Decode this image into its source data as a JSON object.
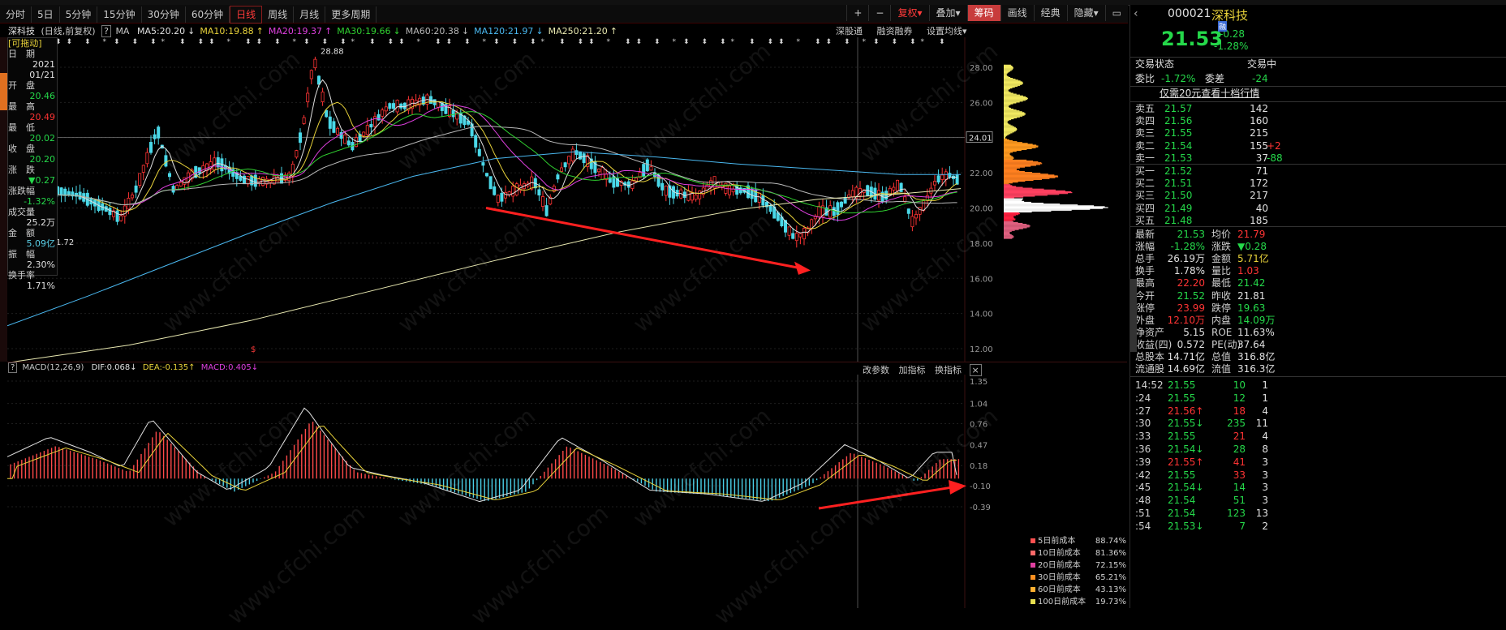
{
  "tabs": [
    "分时",
    "5日",
    "5分钟",
    "15分钟",
    "30分钟",
    "60分钟",
    "日线",
    "周线",
    "月线",
    "更多周期"
  ],
  "active_tab": "日线",
  "toolbar_right": {
    "plus": "+",
    "minus": "−",
    "fq": "复权",
    "overlay": "叠加",
    "chip": "筹码",
    "draw": "画线",
    "classic": "经典",
    "hide": "隐藏"
  },
  "stock_title": {
    "name": "深科技",
    "desc": "(日线,前复权)",
    "ma_label": "MA"
  },
  "ma_items": [
    {
      "label": "MA5:20.20",
      "arrow": "↓",
      "color": "#e0e0e0"
    },
    {
      "label": "MA10:19.88",
      "arrow": "↑",
      "color": "#e8d23a"
    },
    {
      "label": "MA20:19.37",
      "arrow": "↑",
      "color": "#e040e0"
    },
    {
      "label": "MA30:19.66",
      "arrow": "↓",
      "color": "#30d030"
    },
    {
      "label": "MA60:20.38",
      "arrow": "↓",
      "color": "#b8b8b8"
    },
    {
      "label": "MA120:21.97",
      "arrow": "↓",
      "color": "#4ab8f0"
    },
    {
      "label": "MA250:21.20",
      "arrow": "↑",
      "color": "#e8e8b0"
    }
  ],
  "chart_links": {
    "sgt": "深股通",
    "rzrq": "融资融券",
    "set_ma": "设置均线"
  },
  "left_panel": {
    "header": "[可拖动]",
    "date_label": "日　期",
    "date_val": "2021",
    "date_val2": "01/21",
    "open_label": "开　盘",
    "open_val": "20.46",
    "high_label": "最　高",
    "high_val": "20.49",
    "low_label": "最　低",
    "low_val": "20.02",
    "close_label": "收　盘",
    "close_val": "20.20",
    "change_label": "涨　跌",
    "change_val": "▼0.27",
    "pct_label": "涨跌幅",
    "pct_val": "-1.32%",
    "vol_label": "成交量",
    "vol_val": "25.2万",
    "amt_label": "金　额",
    "amt_val": "5.09亿",
    "amp_label": "振　幅",
    "amp_val": "2.30%",
    "turn_label": "换手率",
    "turn_val": "1.71%"
  },
  "price_axis": [
    "28.00",
    "26.00",
    "24.00",
    "22.00",
    "20.00",
    "18.00",
    "16.00",
    "14.00",
    "12.00"
  ],
  "crosshair_price": "24.01",
  "high_annot": "28.88",
  "low_annot": "1.72",
  "macd_header": {
    "title": "MACD(12,26,9)",
    "dif": "DIF:0.068",
    "dea": "DEA:-0.135",
    "macd": "MACD:0.405"
  },
  "macd_links": {
    "params": "改参数",
    "add": "加指标",
    "switch": "换指标",
    "close": "×"
  },
  "macd_axis": [
    "1.35",
    "1.04",
    "0.76",
    "0.47",
    "0.18",
    "-0.10",
    "-0.39"
  ],
  "cost_legend": [
    {
      "label": "5日前成本",
      "val": "88.74%",
      "color": "#ff5050"
    },
    {
      "label": "10日前成本",
      "val": "81.36%",
      "color": "#ff6a6a"
    },
    {
      "label": "20日前成本",
      "val": "72.15%",
      "color": "#e040a0"
    },
    {
      "label": "30日前成本",
      "val": "65.21%",
      "color": "#ff9020"
    },
    {
      "label": "60日前成本",
      "val": "43.13%",
      "color": "#ffb030"
    },
    {
      "label": "100日前成本",
      "val": "19.73%",
      "color": "#e8e050"
    }
  ],
  "quote": {
    "code": "000021",
    "name": "深科技",
    "price": "21.53",
    "chg": "-0.28",
    "pct": "-1.28%",
    "tags": [
      "融",
      "通"
    ],
    "status_label": "交易状态",
    "status_val": "交易中",
    "wb_label": "委比",
    "wb_val": "-1.72%",
    "wc_label": "委差",
    "wc_val": "-24",
    "promo": "仅需20元查看十档行情"
  },
  "asks": [
    {
      "label": "卖五",
      "price": "21.57",
      "vol": "142"
    },
    {
      "label": "卖四",
      "price": "21.56",
      "vol": "160"
    },
    {
      "label": "卖三",
      "price": "21.55",
      "vol": "215"
    },
    {
      "label": "卖二",
      "price": "21.54",
      "vol": "155",
      "chg": "+2"
    },
    {
      "label": "卖一",
      "price": "21.53",
      "vol": "37",
      "chg": "-88"
    }
  ],
  "bids": [
    {
      "label": "买一",
      "price": "21.52",
      "vol": "71"
    },
    {
      "label": "买二",
      "price": "21.51",
      "vol": "172"
    },
    {
      "label": "买三",
      "price": "21.50",
      "vol": "217"
    },
    {
      "label": "买四",
      "price": "21.49",
      "vol": "40"
    },
    {
      "label": "买五",
      "price": "21.48",
      "vol": "185"
    }
  ],
  "stats": [
    {
      "l1": "最新",
      "v1": "21.53",
      "c1": "grn",
      "l2": "均价",
      "v2": "21.79",
      "c2": "red"
    },
    {
      "l1": "涨幅",
      "v1": "-1.28%",
      "c1": "grn",
      "l2": "涨跌",
      "v2": "▼0.28",
      "c2": "grn"
    },
    {
      "l1": "总手",
      "v1": "26.19万",
      "c1": "wht",
      "l2": "金额",
      "v2": "5.71亿",
      "c2": "yel"
    },
    {
      "l1": "换手",
      "v1": "1.78%",
      "c1": "wht",
      "l2": "量比",
      "v2": "1.03",
      "c2": "red"
    },
    {
      "l1": "最高",
      "v1": "22.20",
      "c1": "red",
      "l2": "最低",
      "v2": "21.42",
      "c2": "grn"
    },
    {
      "l1": "今开",
      "v1": "21.52",
      "c1": "grn",
      "l2": "昨收",
      "v2": "21.81",
      "c2": "wht"
    },
    {
      "l1": "涨停",
      "v1": "23.99",
      "c1": "red",
      "l2": "跌停",
      "v2": "19.63",
      "c2": "grn"
    },
    {
      "l1": "外盘",
      "v1": "12.10万",
      "c1": "red",
      "l2": "内盘",
      "v2": "14.09万",
      "c2": "grn"
    },
    {
      "l1": "净资产",
      "v1": "5.15",
      "c1": "wht",
      "l2": "ROE",
      "v2": "11.63%",
      "c2": "wht"
    },
    {
      "l1": "收益(四)",
      "v1": "0.572",
      "c1": "wht",
      "l2": "PE(动)",
      "v2": "37.64",
      "c2": "wht"
    },
    {
      "l1": "总股本",
      "v1": "14.71亿",
      "c1": "wht",
      "l2": "总值",
      "v2": "316.8亿",
      "c2": "wht"
    },
    {
      "l1": "流通股",
      "v1": "14.69亿",
      "c1": "wht",
      "l2": "流值",
      "v2": "316.3亿",
      "c2": "wht"
    }
  ],
  "ticks": [
    {
      "t": "14:52",
      "p": "21.55",
      "pc": "grn",
      "v": "10",
      "vc": "grn",
      "n": "1"
    },
    {
      "t": ":24",
      "p": "21.55",
      "pc": "grn",
      "v": "12",
      "vc": "grn",
      "n": "1"
    },
    {
      "t": ":27",
      "p": "21.56↑",
      "pc": "red",
      "v": "18",
      "vc": "red",
      "n": "4"
    },
    {
      "t": ":30",
      "p": "21.55↓",
      "pc": "grn",
      "v": "235",
      "vc": "grn",
      "n": "11"
    },
    {
      "t": ":33",
      "p": "21.55",
      "pc": "grn",
      "v": "21",
      "vc": "red",
      "n": "4"
    },
    {
      "t": ":36",
      "p": "21.54↓",
      "pc": "grn",
      "v": "28",
      "vc": "grn",
      "n": "8"
    },
    {
      "t": ":39",
      "p": "21.55↑",
      "pc": "red",
      "v": "41",
      "vc": "red",
      "n": "3"
    },
    {
      "t": ":42",
      "p": "21.55",
      "pc": "grn",
      "v": "33",
      "vc": "red",
      "n": "3"
    },
    {
      "t": ":45",
      "p": "21.54↓",
      "pc": "grn",
      "v": "14",
      "vc": "grn",
      "n": "3"
    },
    {
      "t": ":48",
      "p": "21.54",
      "pc": "grn",
      "v": "51",
      "vc": "grn",
      "n": "3"
    },
    {
      "t": ":51",
      "p": "21.54",
      "pc": "grn",
      "v": "123",
      "vc": "grn",
      "n": "13"
    },
    {
      "t": ":54",
      "p": "21.53↓",
      "pc": "grn",
      "v": "7",
      "vc": "grn",
      "n": "2"
    }
  ],
  "watermark": "www.cfchi.com"
}
